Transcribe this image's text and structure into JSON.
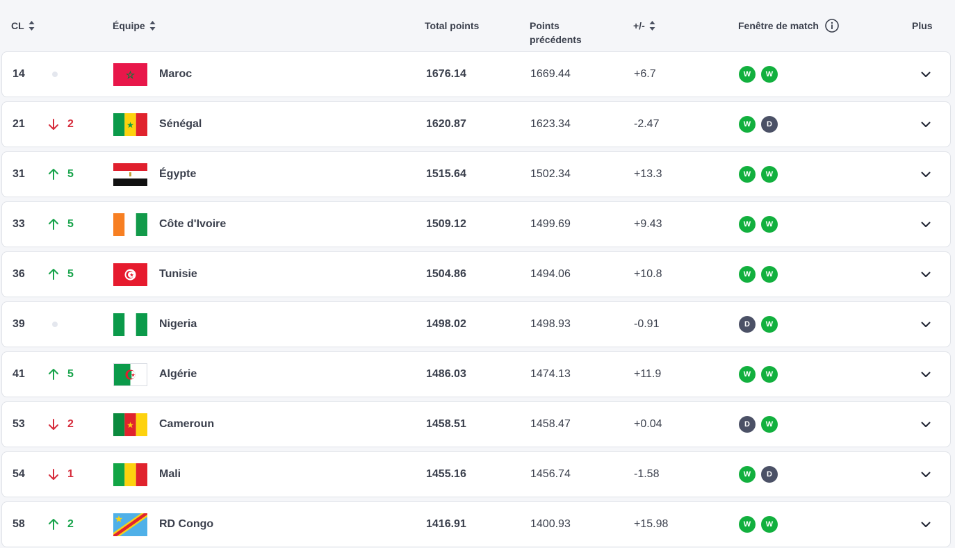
{
  "header": {
    "rank": "CL",
    "team": "Équipe",
    "total": "Total points",
    "prev_line1": "Points",
    "prev_line2": "précédents",
    "diff": "+/-",
    "window": "Fenêtre de match",
    "more": "Plus"
  },
  "colors": {
    "win": "#12b03e",
    "draw": "#4b5166",
    "up": "#16a34a",
    "down": "#d62c3c"
  },
  "rows": [
    {
      "rank": "14",
      "move_dir": "none",
      "move": "",
      "flag": "morocco-flag",
      "team": "Maroc",
      "total": "1676.14",
      "prev": "1669.44",
      "diff": "+6.7",
      "results": [
        "W",
        "W"
      ]
    },
    {
      "rank": "21",
      "move_dir": "down",
      "move": "2",
      "flag": "senegal-flag",
      "team": "Sénégal",
      "total": "1620.87",
      "prev": "1623.34",
      "diff": "-2.47",
      "results": [
        "W",
        "D"
      ]
    },
    {
      "rank": "31",
      "move_dir": "up",
      "move": "5",
      "flag": "egypt-flag",
      "team": "Égypte",
      "total": "1515.64",
      "prev": "1502.34",
      "diff": "+13.3",
      "results": [
        "W",
        "W"
      ]
    },
    {
      "rank": "33",
      "move_dir": "up",
      "move": "5",
      "flag": "ivory-coast-flag",
      "team": "Côte d'Ivoire",
      "total": "1509.12",
      "prev": "1499.69",
      "diff": "+9.43",
      "results": [
        "W",
        "W"
      ]
    },
    {
      "rank": "36",
      "move_dir": "up",
      "move": "5",
      "flag": "tunisia-flag",
      "team": "Tunisie",
      "total": "1504.86",
      "prev": "1494.06",
      "diff": "+10.8",
      "results": [
        "W",
        "W"
      ]
    },
    {
      "rank": "39",
      "move_dir": "none",
      "move": "",
      "flag": "nigeria-flag",
      "team": "Nigeria",
      "total": "1498.02",
      "prev": "1498.93",
      "diff": "-0.91",
      "results": [
        "D",
        "W"
      ]
    },
    {
      "rank": "41",
      "move_dir": "up",
      "move": "5",
      "flag": "algeria-flag",
      "team": "Algérie",
      "total": "1486.03",
      "prev": "1474.13",
      "diff": "+11.9",
      "results": [
        "W",
        "W"
      ]
    },
    {
      "rank": "53",
      "move_dir": "down",
      "move": "2",
      "flag": "cameroon-flag",
      "team": "Cameroun",
      "total": "1458.51",
      "prev": "1458.47",
      "diff": "+0.04",
      "results": [
        "D",
        "W"
      ]
    },
    {
      "rank": "54",
      "move_dir": "down",
      "move": "1",
      "flag": "mali-flag",
      "team": "Mali",
      "total": "1455.16",
      "prev": "1456.74",
      "diff": "-1.58",
      "results": [
        "W",
        "D"
      ]
    },
    {
      "rank": "58",
      "move_dir": "up",
      "move": "2",
      "flag": "dr-congo-flag",
      "team": "RD Congo",
      "total": "1416.91",
      "prev": "1400.93",
      "diff": "+15.98",
      "results": [
        "W",
        "W"
      ]
    }
  ]
}
